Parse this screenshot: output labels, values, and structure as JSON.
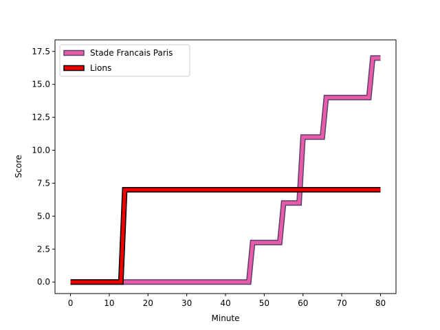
{
  "chart_data": {
    "type": "line",
    "xlabel": "Minute",
    "ylabel": "Score",
    "xlim": [
      -4,
      84
    ],
    "ylim": [
      -0.875,
      18.375
    ],
    "xticks": [
      0,
      10,
      20,
      30,
      40,
      50,
      60,
      70,
      80
    ],
    "yticks": [
      0.0,
      2.5,
      5.0,
      7.5,
      10.0,
      12.5,
      15.0,
      17.5
    ],
    "ytick_labels": [
      "0.0",
      "2.5",
      "5.0",
      "7.5",
      "10.0",
      "12.5",
      "15.0",
      "17.5"
    ],
    "legend_position": "upper-left",
    "grid": false,
    "series": [
      {
        "name": "Stade Francais Paris",
        "color": "#e75ca5",
        "edge_color": "#5a3f72",
        "points": [
          [
            0,
            0
          ],
          [
            46,
            0
          ],
          [
            47,
            3
          ],
          [
            54,
            3
          ],
          [
            55,
            6
          ],
          [
            59,
            6
          ],
          [
            60,
            11
          ],
          [
            65,
            11
          ],
          [
            66,
            14
          ],
          [
            77,
            14
          ],
          [
            78,
            17
          ],
          [
            80,
            17
          ]
        ]
      },
      {
        "name": "Lions",
        "color": "#ee0000",
        "edge_color": "#000000",
        "points": [
          [
            0,
            0
          ],
          [
            13,
            0
          ],
          [
            14,
            7
          ],
          [
            80,
            7
          ]
        ]
      }
    ]
  }
}
